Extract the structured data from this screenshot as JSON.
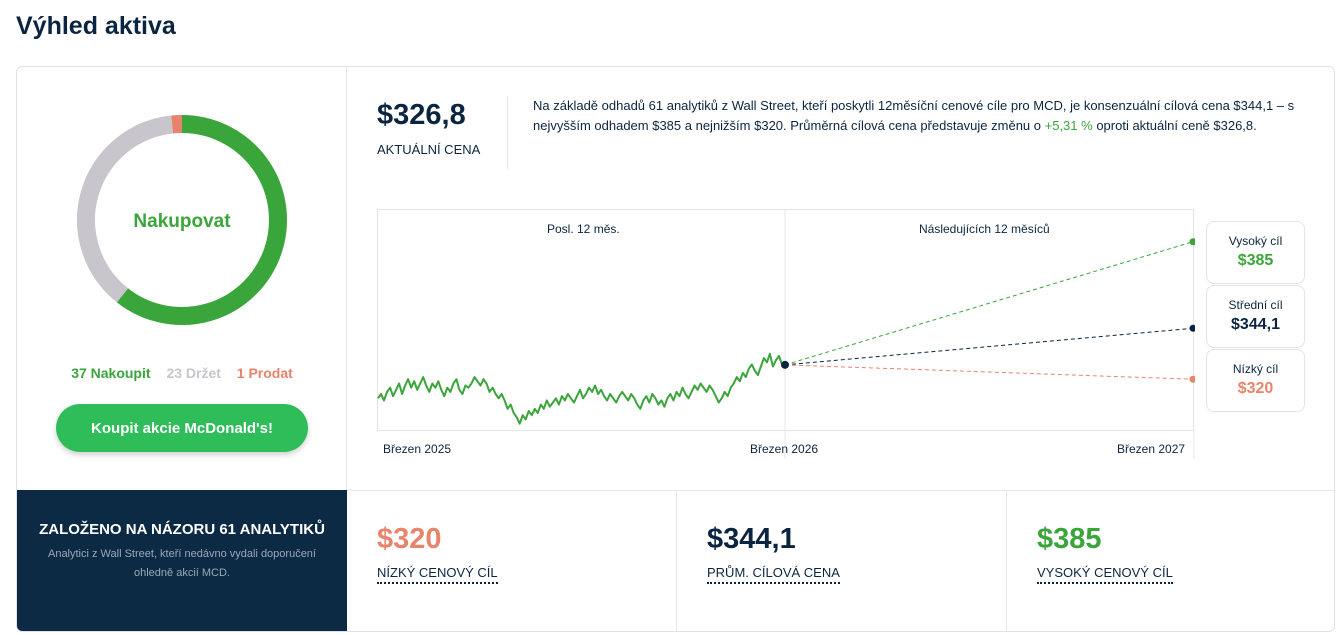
{
  "title": "Výhled aktiva",
  "rating": {
    "label": "Nakupovat",
    "buy_count": 37,
    "hold_count": 23,
    "sell_count": 1,
    "buy_text": "37 Nakoupit",
    "hold_text": "23 Držet",
    "sell_text": "1 Prodat",
    "colors": {
      "buy": "#3aa53a",
      "hold": "#c8c6cc",
      "sell": "#e8846b"
    }
  },
  "buy_button": "Koupit akcie McDonald's!",
  "analysts": {
    "title": "ZALOŽENO NA NÁZORU 61 ANALYTIKŮ",
    "description": "Analytici z Wall Street, kteří nedávno vydali doporučení ohledně akcií MCD."
  },
  "current_price": {
    "value": "$326,8",
    "label": "AKTUÁLNÍ CENA"
  },
  "summary": {
    "before": "Na základě odhadů 61 analytiků z Wall Street, kteří poskytli 12měsíční cenové cíle pro MCD, je konsenzuální cílová cena $344,1 – s nejvyšším odhadem $385 a nejnižším $320. Průměrná cílová cena představuje změnu o ",
    "change": "+5,31 %",
    "after": " oproti aktuální ceně $326,8."
  },
  "chart": {
    "past_label": "Posl. 12 měs.",
    "future_label": "Následujících 12 měsíců",
    "x_labels": [
      "Březen 2025",
      "Březen 2026",
      "Březen 2027"
    ]
  },
  "chart_data": {
    "type": "line",
    "title": "",
    "xlabel": "",
    "ylabel": "",
    "x_ticks": [
      "Březen 2025",
      "Březen 2026",
      "Březen 2027"
    ],
    "ylim": [
      296,
      400
    ],
    "series": [
      {
        "values": [
          311,
          313,
          310,
          314,
          316,
          312,
          315,
          318,
          313,
          317,
          320,
          316,
          319,
          315,
          318,
          321,
          317,
          314,
          318,
          316,
          319,
          315,
          312,
          316,
          314,
          318,
          320,
          315,
          313,
          317,
          316,
          318,
          321,
          319,
          317,
          320,
          318,
          314,
          316,
          313,
          311,
          313,
          310,
          306,
          308,
          304,
          302,
          299,
          303,
          301,
          305,
          303,
          306,
          304,
          308,
          306,
          310,
          307,
          309,
          311,
          308,
          312,
          310,
          313,
          311,
          309,
          312,
          315,
          311,
          313,
          316,
          314,
          317,
          313,
          315,
          312,
          310,
          313,
          311,
          309,
          312,
          314,
          312,
          310,
          313,
          311,
          308,
          306,
          310,
          312,
          309,
          313,
          311,
          308,
          310,
          307,
          311,
          313,
          310,
          314,
          312,
          316,
          313,
          311,
          314,
          317,
          315,
          318,
          316,
          314,
          317,
          315,
          312,
          309,
          311,
          314,
          312,
          316,
          318,
          321,
          319,
          323,
          321,
          325,
          327,
          324,
          322,
          326,
          330,
          328,
          332,
          326,
          329,
          331,
          327,
          326
        ],
        "color": "#3aa53a"
      },
      {
        "values": [
          326.8,
          385
        ],
        "color": "#3aa53a"
      },
      {
        "values": [
          326.8,
          344.1
        ],
        "color": "#0b2540"
      },
      {
        "values": [
          326.8,
          320
        ],
        "color": "#e8846b"
      }
    ]
  },
  "targets": {
    "high": {
      "label": "Vysoký cíl",
      "value": "$385",
      "color": "#3aa53a"
    },
    "mid": {
      "label": "Střední cíl",
      "value": "$344,1",
      "color": "#0b2540"
    },
    "low": {
      "label": "Nízký cíl",
      "value": "$320",
      "color": "#e8846b"
    }
  },
  "stats": {
    "low": {
      "value": "$320",
      "label": "NÍZKÝ CENOVÝ CÍL",
      "color": "#e8846b"
    },
    "avg": {
      "value": "$344,1",
      "label": "PRŮM. CÍLOVÁ CENA",
      "color": "#0b2540"
    },
    "high": {
      "value": "$385",
      "label": "VYSOKÝ CENOVÝ CÍL",
      "color": "#3aa53a"
    }
  }
}
